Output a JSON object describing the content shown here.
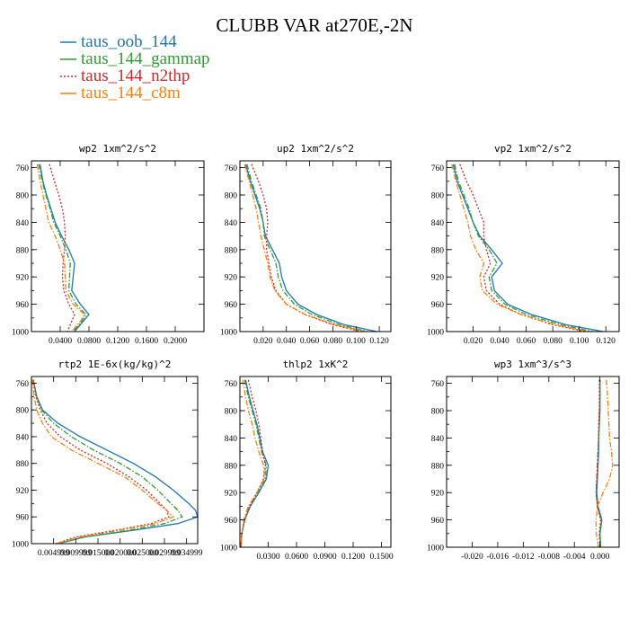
{
  "title": "CLUBB VAR at270E,-2N",
  "legend": [
    {
      "label": "taus_oob_144",
      "color": "#1f77b4",
      "dash": "solid"
    },
    {
      "label": "taus_144_gammap",
      "color": "#2ca02c",
      "dash": "dashdot"
    },
    {
      "label": "taus_144_n2thp",
      "color": "#d62728",
      "dash": "dot"
    },
    {
      "label": "taus_144_c8m",
      "color": "#ff7f0e",
      "dash": "dashdot"
    }
  ],
  "chart_data": [
    {
      "type": "line",
      "title": "wp2   1xm^2/s^2",
      "xlim": [
        0.0,
        0.24
      ],
      "ylim": [
        1000,
        750
      ],
      "xticks": [
        0.04,
        0.08,
        0.12,
        0.16,
        0.2
      ],
      "xtick_labels": [
        "0.0400",
        "0.0800",
        "0.1200",
        "0.1600",
        "0.2000"
      ],
      "yticks": [
        760,
        800,
        840,
        880,
        920,
        960,
        1000
      ],
      "y": [
        755,
        780,
        800,
        820,
        840,
        860,
        880,
        900,
        920,
        940,
        960,
        975,
        985,
        1000
      ],
      "series": [
        {
          "name": "taus_oob_144",
          "x": [
            0.012,
            0.016,
            0.021,
            0.027,
            0.033,
            0.042,
            0.052,
            0.06,
            0.058,
            0.056,
            0.068,
            0.08,
            0.072,
            0.06
          ]
        },
        {
          "name": "taus_144_gammap",
          "x": [
            0.01,
            0.015,
            0.02,
            0.026,
            0.031,
            0.04,
            0.048,
            0.054,
            0.053,
            0.052,
            0.062,
            0.076,
            0.07,
            0.058
          ]
        },
        {
          "name": "taus_144_n2thp",
          "x": [
            0.025,
            0.032,
            0.038,
            0.043,
            0.046,
            0.047,
            0.046,
            0.044,
            0.043,
            0.045,
            0.052,
            0.06,
            0.056,
            0.05
          ]
        },
        {
          "name": "taus_144_c8m",
          "x": [
            0.008,
            0.012,
            0.016,
            0.02,
            0.024,
            0.033,
            0.04,
            0.046,
            0.047,
            0.048,
            0.058,
            0.074,
            0.068,
            0.056
          ]
        }
      ]
    },
    {
      "type": "line",
      "title": "up2   1xm^2/s^2",
      "xlim": [
        0.0,
        0.13
      ],
      "ylim": [
        1000,
        750
      ],
      "xticks": [
        0.02,
        0.04,
        0.06,
        0.08,
        0.1,
        0.12
      ],
      "xtick_labels": [
        "0.020",
        "0.040",
        "0.060",
        "0.080",
        "0.100",
        "0.120"
      ],
      "yticks": [
        760,
        800,
        840,
        880,
        920,
        960,
        1000
      ],
      "y": [
        755,
        780,
        800,
        820,
        840,
        860,
        880,
        900,
        920,
        940,
        960,
        975,
        990,
        1000
      ],
      "series": [
        {
          "name": "taus_oob_144",
          "x": [
            0.005,
            0.009,
            0.013,
            0.017,
            0.02,
            0.022,
            0.028,
            0.034,
            0.036,
            0.04,
            0.05,
            0.066,
            0.09,
            0.118
          ]
        },
        {
          "name": "taus_144_gammap",
          "x": [
            0.006,
            0.01,
            0.014,
            0.018,
            0.02,
            0.021,
            0.026,
            0.031,
            0.033,
            0.037,
            0.047,
            0.062,
            0.086,
            0.11
          ]
        },
        {
          "name": "taus_144_n2thp",
          "x": [
            0.01,
            0.016,
            0.02,
            0.023,
            0.024,
            0.023,
            0.023,
            0.025,
            0.027,
            0.031,
            0.04,
            0.056,
            0.08,
            0.105
          ]
        },
        {
          "name": "taus_144_c8m",
          "x": [
            0.004,
            0.008,
            0.011,
            0.014,
            0.016,
            0.018,
            0.021,
            0.024,
            0.026,
            0.03,
            0.04,
            0.056,
            0.082,
            0.108
          ]
        }
      ]
    },
    {
      "type": "line",
      "title": "vp2   1xm^2/s^2",
      "xlim": [
        0.0,
        0.13
      ],
      "ylim": [
        1000,
        750
      ],
      "xticks": [
        0.02,
        0.04,
        0.06,
        0.08,
        0.1,
        0.12
      ],
      "xtick_labels": [
        "0.020",
        "0.040",
        "0.060",
        "0.080",
        "0.100",
        "0.120"
      ],
      "yticks": [
        760,
        800,
        840,
        880,
        920,
        960,
        1000
      ],
      "y": [
        755,
        780,
        800,
        820,
        840,
        860,
        880,
        900,
        920,
        940,
        960,
        975,
        990,
        1000
      ],
      "series": [
        {
          "name": "taus_oob_144",
          "x": [
            0.005,
            0.008,
            0.012,
            0.016,
            0.02,
            0.025,
            0.034,
            0.042,
            0.034,
            0.036,
            0.046,
            0.064,
            0.09,
            0.118
          ]
        },
        {
          "name": "taus_144_gammap",
          "x": [
            0.006,
            0.009,
            0.013,
            0.017,
            0.02,
            0.024,
            0.032,
            0.038,
            0.032,
            0.034,
            0.044,
            0.06,
            0.086,
            0.11
          ]
        },
        {
          "name": "taus_144_n2thp",
          "x": [
            0.01,
            0.015,
            0.02,
            0.024,
            0.028,
            0.028,
            0.03,
            0.033,
            0.028,
            0.03,
            0.04,
            0.056,
            0.08,
            0.105
          ]
        },
        {
          "name": "taus_144_c8m",
          "x": [
            0.004,
            0.007,
            0.01,
            0.013,
            0.016,
            0.018,
            0.022,
            0.028,
            0.025,
            0.027,
            0.038,
            0.056,
            0.082,
            0.108
          ]
        }
      ]
    },
    {
      "type": "line",
      "title": "rtp2   1E-6x(kg/kg)^2",
      "xlim": [
        0.0,
        0.0375
      ],
      "ylim": [
        1000,
        750
      ],
      "xticks": [
        0.005,
        0.01,
        0.015,
        0.02,
        0.025,
        0.03,
        0.035
      ],
      "xtick_labels": [
        "0.004999",
        "0.009999",
        "0.015000",
        "0.020000",
        "0.025000",
        "0.029999",
        "0.034999"
      ],
      "yticks": [
        760,
        800,
        840,
        880,
        920,
        960,
        1000
      ],
      "y": [
        755,
        780,
        800,
        820,
        840,
        860,
        880,
        900,
        920,
        940,
        950,
        960,
        970,
        980,
        990,
        1000
      ],
      "series": [
        {
          "name": "taus_oob_144",
          "x": [
            0.0004,
            0.0012,
            0.0025,
            0.006,
            0.011,
            0.017,
            0.023,
            0.028,
            0.032,
            0.0355,
            0.037,
            0.0375,
            0.033,
            0.023,
            0.012,
            0.006
          ]
        },
        {
          "name": "taus_144_gammap",
          "x": [
            0.0004,
            0.0012,
            0.0023,
            0.005,
            0.009,
            0.014,
            0.02,
            0.025,
            0.0285,
            0.0315,
            0.033,
            0.034,
            0.03,
            0.022,
            0.012,
            0.006
          ]
        },
        {
          "name": "taus_144_n2thp",
          "x": [
            0.0004,
            0.001,
            0.002,
            0.0035,
            0.0065,
            0.011,
            0.017,
            0.022,
            0.026,
            0.029,
            0.0305,
            0.031,
            0.027,
            0.019,
            0.01,
            0.0055
          ]
        },
        {
          "name": "taus_144_c8m",
          "x": [
            0.0002,
            0.0006,
            0.0012,
            0.0025,
            0.0045,
            0.009,
            0.015,
            0.021,
            0.025,
            0.0285,
            0.0305,
            0.032,
            0.028,
            0.02,
            0.011,
            0.0055
          ]
        }
      ]
    },
    {
      "type": "line",
      "title": "thlp2   1xK^2",
      "xlim": [
        0.0,
        0.16
      ],
      "ylim": [
        1000,
        750
      ],
      "xticks": [
        0.03,
        0.06,
        0.09,
        0.12,
        0.15
      ],
      "xtick_labels": [
        "0.0300",
        "0.0600",
        "0.0900",
        "0.1200",
        "0.1500"
      ],
      "yticks": [
        760,
        800,
        840,
        880,
        920,
        960,
        1000
      ],
      "y": [
        755,
        780,
        800,
        820,
        840,
        860,
        880,
        900,
        920,
        940,
        960,
        980,
        1000
      ],
      "series": [
        {
          "name": "taus_oob_144",
          "x": [
            0.006,
            0.01,
            0.014,
            0.018,
            0.021,
            0.024,
            0.03,
            0.028,
            0.02,
            0.011,
            0.005,
            0.002,
            0.001
          ]
        },
        {
          "name": "taus_144_gammap",
          "x": [
            0.005,
            0.009,
            0.013,
            0.017,
            0.02,
            0.023,
            0.028,
            0.027,
            0.019,
            0.01,
            0.005,
            0.002,
            0.001
          ]
        },
        {
          "name": "taus_144_n2thp",
          "x": [
            0.009,
            0.013,
            0.017,
            0.02,
            0.022,
            0.024,
            0.027,
            0.025,
            0.018,
            0.01,
            0.005,
            0.002,
            0.001
          ]
        },
        {
          "name": "taus_144_c8m",
          "x": [
            0.003,
            0.006,
            0.009,
            0.013,
            0.016,
            0.02,
            0.025,
            0.026,
            0.018,
            0.009,
            0.004,
            0.002,
            0.001
          ]
        }
      ]
    },
    {
      "type": "line",
      "title": "wp3   1xm^3/s^3",
      "xlim": [
        -0.024,
        0.003
      ],
      "ylim": [
        1000,
        750
      ],
      "xticks": [
        -0.02,
        -0.016,
        -0.012,
        -0.008,
        -0.004,
        0.0
      ],
      "xtick_labels": [
        "-0.020",
        "-0.016",
        "-0.012",
        "-0.008",
        "-0.004",
        "0.000"
      ],
      "yticks": [
        760,
        800,
        840,
        880,
        920,
        960,
        1000
      ],
      "y": [
        755,
        780,
        800,
        820,
        840,
        860,
        880,
        900,
        920,
        940,
        960,
        980,
        1000
      ],
      "series": [
        {
          "name": "taus_oob_144",
          "x": [
            0.0,
            0.0,
            0.0,
            -0.0001,
            -0.0002,
            -0.0002,
            -0.0003,
            -0.0004,
            -0.0005,
            -0.0003,
            0.0003,
            0.0,
            0.0001
          ]
        },
        {
          "name": "taus_144_gammap",
          "x": [
            0.0,
            0.0,
            -0.0001,
            -0.0001,
            -0.0002,
            -0.0003,
            -0.0004,
            -0.0005,
            -0.0006,
            -0.0004,
            0.0002,
            0.0,
            0.0001
          ]
        },
        {
          "name": "taus_144_n2thp",
          "x": [
            -0.0001,
            -0.0001,
            -0.0001,
            -0.0002,
            -0.0002,
            -0.0003,
            -0.0004,
            -0.0005,
            -0.0006,
            -0.0004,
            0.0001,
            -0.0001,
            0.0
          ]
        },
        {
          "name": "taus_144_c8m",
          "x": [
            0.001,
            0.0012,
            0.0013,
            0.0014,
            0.0015,
            0.0018,
            0.002,
            0.0015,
            0.0005,
            -0.0004,
            -0.0006,
            -0.0006,
            -0.0002
          ]
        }
      ]
    }
  ]
}
